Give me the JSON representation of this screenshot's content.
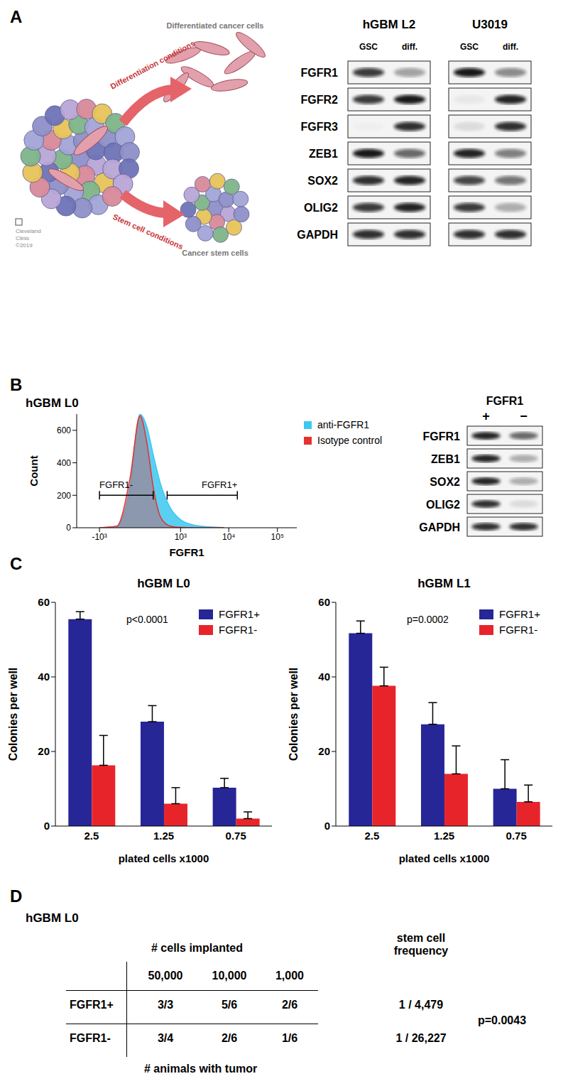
{
  "chart_data": [
    {
      "type": "area",
      "title": "hGBM L0",
      "x": [
        -1000,
        -400,
        -150,
        0,
        100,
        200,
        350,
        600,
        1000,
        2000,
        4000,
        8000
      ],
      "series": [
        {
          "name": "anti-FGFR1",
          "color": "#3cc8f0",
          "values": [
            0,
            8,
            250,
            700,
            620,
            450,
            260,
            120,
            50,
            15,
            5,
            0
          ]
        },
        {
          "name": "Isotype control",
          "color": "#e8302f",
          "values": [
            0,
            10,
            300,
            690,
            520,
            250,
            60,
            10,
            2,
            0,
            0,
            0
          ]
        }
      ],
      "xlabel": "FGFR1",
      "ylabel": "Count",
      "xlim": [
        -3000,
        250000
      ],
      "xticks": [
        {
          "value": -1000,
          "label": "-10³"
        },
        {
          "value": 1000,
          "label": "10³"
        },
        {
          "value": 10000,
          "label": "10⁴"
        },
        {
          "value": 100000,
          "label": "10⁵"
        }
      ],
      "ylim": [
        0,
        700
      ],
      "yticks": [
        0,
        200,
        400,
        600
      ],
      "legend": "upper right",
      "gates": [
        {
          "label": "FGFR1-",
          "x": [
            -1000,
            200
          ],
          "y": 200
        },
        {
          "label": "FGFR1+",
          "x": [
            500,
            15000
          ],
          "y": 200
        }
      ]
    },
    {
      "type": "bar",
      "title": "hGBM L0",
      "categories": [
        "2.5",
        "1.25",
        "0.75"
      ],
      "xlabel": "plated cells x1000",
      "ylabel": "Colonies per well",
      "ylim": [
        0,
        60
      ],
      "yticks": [
        0,
        20,
        40,
        60
      ],
      "legend": "upper right",
      "annotation": "p<0.0001",
      "series": [
        {
          "name": "FGFR1+",
          "color": "#262696",
          "values": [
            55.5,
            28,
            10.3
          ],
          "errors": [
            2,
            4.3,
            2.5
          ]
        },
        {
          "name": "FGFR1-",
          "color": "#e8242b",
          "values": [
            16.3,
            6,
            2
          ],
          "errors": [
            8,
            4.3,
            1.8
          ]
        }
      ]
    },
    {
      "type": "bar",
      "title": "hGBM L1",
      "categories": [
        "2.5",
        "1.25",
        "0.75"
      ],
      "xlabel": "plated cells x1000",
      "ylabel": "Colonies per well",
      "ylim": [
        0,
        60
      ],
      "yticks": [
        0,
        20,
        40,
        60
      ],
      "legend": "upper right",
      "annotation": "p=0.0002",
      "series": [
        {
          "name": "FGFR1+",
          "color": "#262696",
          "values": [
            51.7,
            27.3,
            10
          ],
          "errors": [
            3.3,
            5.8,
            7.8
          ]
        },
        {
          "name": "FGFR1-",
          "color": "#e8242b",
          "values": [
            37.6,
            14,
            6.5
          ],
          "errors": [
            5,
            7.5,
            4.5
          ]
        }
      ]
    }
  ],
  "panels": {
    "A": {
      "label": "A",
      "illustration": {
        "arrow_top": "Differentiation conditions",
        "arrow_bottom": "Stem cell conditions",
        "result_top": "Differentiated cancer cells",
        "result_bottom": "Cancer stem cells",
        "credit": [
          "Cleveland",
          "Clinic",
          "©2019"
        ]
      },
      "blots": {
        "rows": [
          "FGFR1",
          "FGFR2",
          "FGFR3",
          "ZEB1",
          "SOX2",
          "OLIG2",
          "GAPDH"
        ],
        "groups": [
          {
            "title": "hGBM L2",
            "lanes": [
              "GSC",
              "diff."
            ],
            "band_intensity": [
              [
                0.8,
                0.35
              ],
              [
                0.8,
                0.95
              ],
              [
                0.02,
                0.85
              ],
              [
                0.95,
                0.6
              ],
              [
                0.85,
                0.9
              ],
              [
                0.8,
                0.9
              ],
              [
                0.85,
                0.85
              ]
            ]
          },
          {
            "title": "U3019",
            "lanes": [
              "GSC",
              "diff."
            ],
            "band_intensity": [
              [
                0.95,
                0.45
              ],
              [
                0.05,
                0.9
              ],
              [
                0.1,
                0.85
              ],
              [
                0.9,
                0.5
              ],
              [
                0.75,
                0.55
              ],
              [
                0.8,
                0.3
              ],
              [
                0.85,
                0.85
              ]
            ]
          }
        ]
      }
    },
    "B": {
      "label": "B",
      "blot": {
        "header": "FGFR1",
        "lanes": [
          "+",
          "−"
        ],
        "rows": [
          "FGFR1",
          "ZEB1",
          "SOX2",
          "OLIG2",
          "GAPDH"
        ],
        "band_intensity": [
          [
            0.9,
            0.6
          ],
          [
            0.9,
            0.3
          ],
          [
            0.9,
            0.3
          ],
          [
            0.85,
            0.1
          ],
          [
            0.85,
            0.85
          ]
        ]
      }
    },
    "C": {
      "label": "C"
    },
    "D": {
      "label": "D",
      "title": "hGBM L0",
      "column_header": "# cells implanted",
      "frequency_header": "stem cell frequency",
      "columns": [
        "50,000",
        "10,000",
        "1,000"
      ],
      "rows": [
        {
          "label": "FGFR1+",
          "cells": [
            "3/3",
            "5/6",
            "2/6"
          ],
          "frequency": "1 / 4,479"
        },
        {
          "label": "FGFR1-",
          "cells": [
            "3/4",
            "2/6",
            "1/6"
          ],
          "frequency": "1 / 26,227"
        }
      ],
      "p_value": "p=0.0043",
      "footer": "# animals with tumor"
    }
  }
}
